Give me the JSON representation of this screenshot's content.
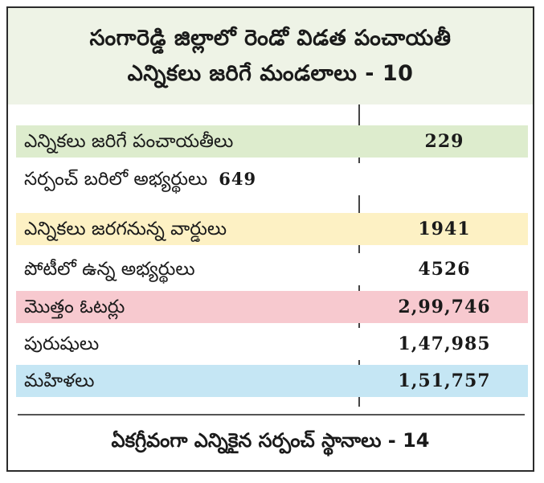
{
  "header": {
    "title_line1": "సంగారెడ్డి జిల్లాలో రెండో విడత పంచాయతీ",
    "title_line2": "ఎన్నికలు జరిగే మండలాలు - 10"
  },
  "colors": {
    "header_bg": "#eef3e6",
    "green": "#ddeccd",
    "yellow": "#fdf1c4",
    "pink": "#f7c9cf",
    "blue": "#c5e6f4"
  },
  "rows": [
    {
      "label": "ఎన్నికలు జరిగే పంచాయతీలు",
      "value": "229",
      "bg": "#ddeccd"
    },
    {
      "label": "సర్పంచ్ బరిలో అభ్యర్థులు",
      "inline_value": "649",
      "bg": "#ffffff"
    },
    {
      "label": "ఎన్నికలు జరగనున్న వార్డులు",
      "value": "1941",
      "bg": "#fdf1c4"
    },
    {
      "label": "పోటీలో ఉన్న అభ్యర్థులు",
      "value": "4526",
      "bg": "#ffffff"
    },
    {
      "label": "మొత్తం ఓటర్లు",
      "value": "2,99,746",
      "bg": "#f7c9cf"
    },
    {
      "label": "పురుషులు",
      "value": "1,47,985",
      "bg": "#ffffff"
    },
    {
      "label": "మహిళలు",
      "value": "1,51,757",
      "bg": "#c5e6f4"
    }
  ],
  "footer": {
    "text": "ఏకగ్రీవంగా ఎన్నికైన సర్పంచ్ స్థానాలు - 14"
  }
}
